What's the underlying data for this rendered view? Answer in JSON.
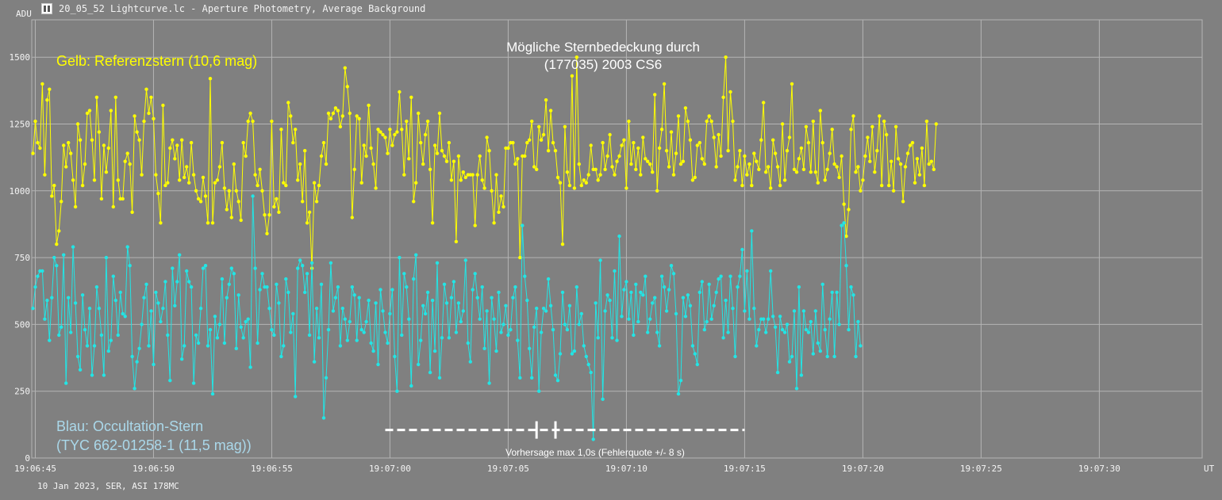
{
  "window": {
    "title": "20_05_52 Lightcurve.lc - Aperture Photometry, Average Background",
    "icon": "lightcurve-app-icon"
  },
  "chart_data": {
    "type": "line",
    "title_lines": [
      "Mögliche Sternbedeckung durch",
      "(177035) 2003 CS6"
    ],
    "y_unit": "ADU",
    "x_unit": "UT",
    "ylim": [
      0,
      1640
    ],
    "y_ticks": [
      0,
      250,
      500,
      750,
      1000,
      1250,
      1500
    ],
    "x_ticks": [
      {
        "t": 0,
        "label": "19:06:45"
      },
      {
        "t": 5,
        "label": "19:06:50"
      },
      {
        "t": 10,
        "label": "19:06:55"
      },
      {
        "t": 15,
        "label": "19:07:00"
      },
      {
        "t": 20,
        "label": "19:07:05"
      },
      {
        "t": 25,
        "label": "19:07:10"
      },
      {
        "t": 30,
        "label": "19:07:15"
      },
      {
        "t": 35,
        "label": "19:07:20"
      },
      {
        "t": 40,
        "label": "19:07:25"
      },
      {
        "t": 45,
        "label": "19:07:30"
      }
    ],
    "xlim": [
      -0.15,
      49.35
    ],
    "grid": true,
    "sample_interval_s": 0.1,
    "start_t": -0.1,
    "series": [
      {
        "name": "Gelb: Referenzstern  (10,6 mag)",
        "color": "#ffff00",
        "values": [
          1140,
          1260,
          1180,
          1160,
          1400,
          1060,
          1340,
          1380,
          980,
          1020,
          800,
          850,
          960,
          1170,
          1090,
          1180,
          1140,
          1040,
          940,
          1250,
          1190,
          1020,
          1100,
          1290,
          1300,
          1190,
          1040,
          1350,
          1220,
          970,
          1170,
          1070,
          1160,
          1300,
          940,
          1350,
          1040,
          970,
          970,
          1110,
          1140,
          1100,
          920,
          1280,
          1220,
          1190,
          1060,
          1260,
          1380,
          1290,
          1350,
          1270,
          1060,
          990,
          880,
          1320,
          1020,
          1030,
          1160,
          1190,
          1120,
          1170,
          1040,
          1190,
          1050,
          1090,
          1030,
          1180,
          1060,
          1000,
          970,
          960,
          1050,
          980,
          880,
          1420,
          880,
          1030,
          1040,
          1090,
          1180,
          1010,
          930,
          1000,
          900,
          1100,
          1000,
          960,
          890,
          1180,
          1130,
          1260,
          1290,
          1260,
          1060,
          1020,
          1080,
          1000,
          910,
          840,
          910,
          1260,
          940,
          970,
          920,
          1230,
          1030,
          1020,
          1330,
          1280,
          1180,
          1230,
          1040,
          1100,
          960,
          1150,
          880,
          920,
          710,
          1030,
          960,
          1020,
          1130,
          1180,
          1100,
          1290,
          1270,
          1290,
          1310,
          1300,
          1240,
          1280,
          1460,
          1390,
          1290,
          900,
          1080,
          1280,
          1270,
          1030,
          1170,
          1130,
          1320,
          1160,
          1100,
          1010,
          1230,
          1220,
          1210,
          1200,
          1140,
          1230,
          1170,
          1210,
          1220,
          1370,
          1230,
          1060,
          1260,
          1120,
          1350,
          960,
          1030,
          1290,
          1180,
          1100,
          1210,
          1260,
          1080,
          880,
          1170,
          1140,
          1290,
          1150,
          1130,
          1110,
          1180,
          1040,
          1110,
          810,
          1130,
          1040,
          1070,
          1050,
          1060,
          1060,
          1060,
          870,
          1060,
          1130,
          1040,
          1010,
          1200,
          1150,
          1000,
          880,
          1060,
          920,
          980,
          940,
          1160,
          1160,
          1180,
          1180,
          1100,
          1120,
          750,
          1130,
          1130,
          1180,
          1190,
          1260,
          1090,
          1080,
          1240,
          1190,
          1210,
          1340,
          1150,
          1300,
          1180,
          1150,
          1050,
          1030,
          800,
          1240,
          1070,
          1020,
          1430,
          1010,
          1500,
          1100,
          1020,
          1040,
          1030,
          1060,
          1170,
          1080,
          1080,
          1040,
          1060,
          1180,
          1080,
          1130,
          1210,
          1090,
          1060,
          1110,
          1130,
          1170,
          1190,
          1010,
          1260,
          1100,
          1180,
          1080,
          1160,
          1060,
          1200,
          1120,
          1110,
          1100,
          1070,
          1360,
          1000,
          1160,
          1230,
          1400,
          1150,
          1090,
          1220,
          1060,
          1140,
          1280,
          1100,
          1110,
          1310,
          1260,
          1190,
          1040,
          1050,
          1170,
          1180,
          1120,
          1100,
          1260,
          1280,
          1260,
          1200,
          1090,
          1210,
          1130,
          1350,
          1500,
          1150,
          1370,
          1260,
          1040,
          1090,
          1150,
          1020,
          1130,
          1060,
          1100,
          1020,
          1140,
          1110,
          1080,
          1190,
          1330,
          1070,
          1090,
          1010,
          1190,
          1140,
          1090,
          1020,
          1250,
          1040,
          1150,
          1200,
          1400,
          1080,
          1070,
          1120,
          1160,
          1080,
          1240,
          1180,
          1070,
          1260,
          1070,
          1030,
          1300,
          1180,
          1040,
          1080,
          1140,
          1230,
          1100,
          1090,
          1050,
          1130,
          950,
          830,
          930,
          1230,
          1280,
          1070,
          1090,
          1000,
          1040,
          1130,
          1200,
          1110,
          1240,
          1070,
          1150,
          1280,
          1020,
          1260,
          1210,
          1020,
          1110,
          1000,
          1240,
          1120,
          1100,
          960,
          1090,
          1140,
          1170,
          1180,
          1030,
          1120,
          1060,
          1160,
          1020,
          1260,
          1100,
          1110,
          1080,
          1250
        ]
      },
      {
        "name": "Blau:   Occultation-Stern  (TYC 662-01258-1 (11,5 mag))",
        "color": "#22e5e5",
        "values": [
          560,
          640,
          680,
          700,
          700,
          520,
          590,
          440,
          600,
          750,
          720,
          460,
          490,
          760,
          280,
          600,
          470,
          790,
          580,
          380,
          330,
          610,
          480,
          420,
          560,
          310,
          420,
          640,
          560,
          460,
          310,
          750,
          400,
          440,
          680,
          590,
          460,
          620,
          540,
          530,
          790,
          720,
          380,
          260,
          360,
          410,
          500,
          600,
          650,
          420,
          550,
          350,
          620,
          580,
          510,
          560,
          660,
          460,
          290,
          710,
          570,
          660,
          760,
          370,
          420,
          700,
          660,
          640,
          280,
          460,
          430,
          560,
          710,
          720,
          420,
          480,
          240,
          530,
          450,
          500,
          670,
          430,
          600,
          650,
          710,
          690,
          410,
          610,
          490,
          450,
          510,
          520,
          340,
          980,
          710,
          430,
          630,
          690,
          640,
          640,
          560,
          480,
          460,
          650,
          580,
          380,
          420,
          670,
          620,
          470,
          540,
          230,
          710,
          740,
          720,
          620,
          690,
          460,
          730,
          360,
          560,
          450,
          650,
          150,
          300,
          480,
          730,
          550,
          600,
          640,
          420,
          560,
          520,
          440,
          510,
          640,
          610,
          440,
          600,
          480,
          470,
          510,
          590,
          430,
          400,
          580,
          350,
          630,
          550,
          470,
          430,
          540,
          630,
          380,
          250,
          750,
          460,
          690,
          640,
          520,
          270,
          670,
          760,
          350,
          440,
          570,
          540,
          620,
          320,
          590,
          400,
          730,
          300,
          450,
          650,
          580,
          450,
          600,
          660,
          470,
          580,
          510,
          550,
          740,
          430,
          360,
          630,
          690,
          600,
          520,
          640,
          410,
          550,
          280,
          600,
          520,
          400,
          620,
          470,
          500,
          570,
          460,
          480,
          600,
          640,
          440,
          300,
          870,
          680,
          590,
          410,
          300,
          490,
          560,
          250,
          470,
          560,
          550,
          670,
          570,
          480,
          310,
          290,
          390,
          620,
          500,
          480,
          570,
          390,
          400,
          640,
          500,
          540,
          420,
          380,
          350,
          320,
          70,
          580,
          450,
          740,
          220,
          550,
          610,
          590,
          450,
          700,
          440,
          830,
          530,
          630,
          660,
          520,
          620,
          460,
          650,
          510,
          620,
          610,
          680,
          470,
          520,
          580,
          600,
          470,
          420,
          680,
          640,
          550,
          630,
          720,
          690,
          540,
          240,
          290,
          600,
          530,
          610,
          570,
          420,
          390,
          350,
          620,
          660,
          480,
          510,
          650,
          520,
          570,
          620,
          670,
          680,
          450,
          590,
          470,
          680,
          560,
          380,
          640,
          680,
          780,
          550,
          700,
          520,
          850,
          560,
          420,
          480,
          520,
          520,
          470,
          520,
          700,
          530,
          490,
          320,
          530,
          480,
          470,
          500,
          360,
          380,
          550,
          260,
          640,
          310,
          550,
          480,
          470,
          510,
          390,
          550,
          430,
          400,
          650,
          480,
          380,
          520,
          620,
          380,
          620,
          500,
          870,
          880,
          720,
          480,
          640,
          610,
          380,
          510,
          420
        ]
      }
    ],
    "annotations": {
      "legend_yellow": "Gelb: Referenzstern  (10,6 mag)",
      "legend_blue_line1": "Blau:   Occultation-Stern",
      "legend_blue_line2": "(TYC 662-01258-1 (11,5 mag))",
      "prediction_label": "Vorhersage max 1,0s (Fehlerquote +/- 8 s)",
      "prediction_t_start": 14.8,
      "prediction_t_end": 30.0,
      "prediction_marker_ts": [
        21.2,
        22.0
      ],
      "prediction_y": 105
    },
    "footer": "10 Jan 2023, SER, ASI 178MC",
    "colors": {
      "background": "#808080",
      "grid": "#b4b4b4",
      "axis_text": "#f4f4f4",
      "title_text": "#ffffff",
      "legend_yellow": "#ffff00",
      "legend_blue": "#aad8ea",
      "prediction": "#ffffff"
    }
  }
}
